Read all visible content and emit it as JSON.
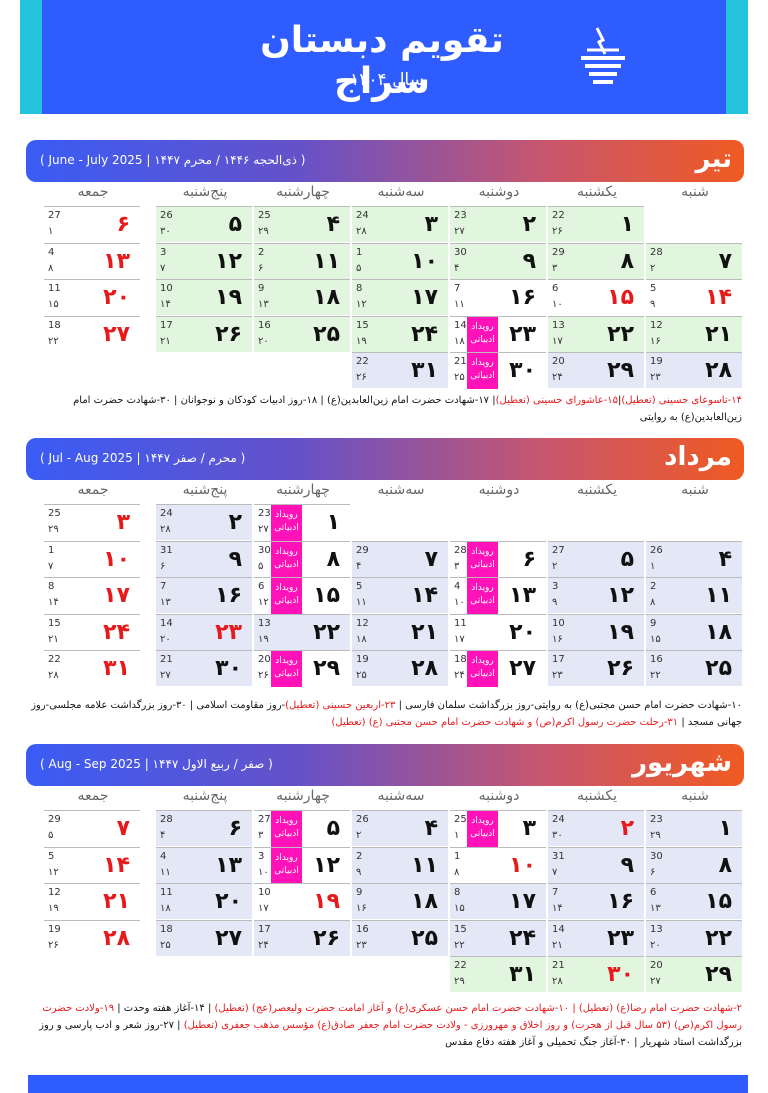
{
  "header": {
    "title": "تقویم دبستان سراج",
    "year": "سال ۱۴۰۴"
  },
  "weekdays": [
    "شنبه",
    "یکشنبه",
    "دوشنبه",
    "سه‌شنبه",
    "چهارشنبه",
    "پنج‌شنبه",
    "جمعه"
  ],
  "event_label": "رویداد ادبیاتی",
  "colors": {
    "header": "#2f5cff",
    "accent": "#23c3dc",
    "holiday": "#e8191b",
    "event": "#ff12b8",
    "week_green": "#e2f6df",
    "week_blue": "#e4e8f6"
  },
  "months": [
    {
      "name": "تیر",
      "hijri_range": "( ذی‌الحجه ۱۴۴۶ / محرم ۱۴۴۷ | June - July 2025 )",
      "rows": [
        [
          {
            "d": "",
            "h": "",
            "g": ""
          },
          {
            "d": "۱",
            "h": "۲۶",
            "g": "22",
            "bg": "gr"
          },
          {
            "d": "۲",
            "h": "۲۷",
            "g": "23",
            "bg": "gr"
          },
          {
            "d": "۳",
            "h": "۲۸",
            "g": "24",
            "bg": "gr"
          },
          {
            "d": "۴",
            "h": "۲۹",
            "g": "25",
            "bg": "gr"
          },
          {
            "d": "۵",
            "h": "۳۰",
            "g": "26",
            "bg": "gr"
          },
          {
            "d": "۶",
            "h": "۱",
            "g": "27",
            "red": true
          }
        ],
        [
          {
            "d": "۷",
            "h": "۲",
            "g": "28",
            "bg": "gr"
          },
          {
            "d": "۸",
            "h": "۳",
            "g": "29",
            "bg": "gr"
          },
          {
            "d": "۹",
            "h": "۴",
            "g": "30",
            "bg": "gr"
          },
          {
            "d": "۱۰",
            "h": "۵",
            "g": "1",
            "bg": "gr"
          },
          {
            "d": "۱۱",
            "h": "۶",
            "g": "2",
            "bg": "gr"
          },
          {
            "d": "۱۲",
            "h": "۷",
            "g": "3",
            "bg": "gr"
          },
          {
            "d": "۱۳",
            "h": "۸",
            "g": "4",
            "red": true
          }
        ],
        [
          {
            "d": "۱۴",
            "h": "۹",
            "g": "5",
            "red": true
          },
          {
            "d": "۱۵",
            "h": "۱۰",
            "g": "6",
            "red": true
          },
          {
            "d": "۱۶",
            "h": "۱۱",
            "g": "7"
          },
          {
            "d": "۱۷",
            "h": "۱۲",
            "g": "8",
            "bg": "gr"
          },
          {
            "d": "۱۸",
            "h": "۱۳",
            "g": "9",
            "bg": "gr"
          },
          {
            "d": "۱۹",
            "h": "۱۴",
            "g": "10",
            "bg": "gr"
          },
          {
            "d": "۲۰",
            "h": "۱۵",
            "g": "11",
            "red": true
          }
        ],
        [
          {
            "d": "۲۱",
            "h": "۱۶",
            "g": "12",
            "bg": "gr"
          },
          {
            "d": "۲۲",
            "h": "۱۷",
            "g": "13",
            "bg": "gr"
          },
          {
            "d": "۲۳",
            "h": "۱۸",
            "g": "14",
            "ev": true
          },
          {
            "d": "۲۴",
            "h": "۱۹",
            "g": "15",
            "bg": "gr"
          },
          {
            "d": "۲۵",
            "h": "۲۰",
            "g": "16",
            "bg": "gr"
          },
          {
            "d": "۲۶",
            "h": "۲۱",
            "g": "17",
            "bg": "gr"
          },
          {
            "d": "۲۷",
            "h": "۲۲",
            "g": "18",
            "red": true
          }
        ],
        [
          {
            "d": "۲۸",
            "h": "۲۳",
            "g": "19",
            "bg": "bl"
          },
          {
            "d": "۲۹",
            "h": "۲۴",
            "g": "20",
            "bg": "bl"
          },
          {
            "d": "۳۰",
            "h": "۲۵",
            "g": "21",
            "ev": true
          },
          {
            "d": "۳۱",
            "h": "۲۶",
            "g": "22",
            "bg": "bl"
          }
        ]
      ],
      "notes": [
        {
          "t": "۱۴-تاسوعای حسینی (تعطیل)",
          "r": true
        },
        {
          "t": "|"
        },
        {
          "t": "۱۵-عاشورای حسینی (تعطیل)",
          "r": true
        },
        {
          "t": "| ۱۷-شهادت حضرت امام زین‌العابدین(ع) | ۱۸-روز ادبیات کودکان و نوجوانان | ۳۰-شهادت حضرت امام زین‌العابدین(ع) به روایتی"
        }
      ]
    },
    {
      "name": "مرداد",
      "hijri_range": "( محرم / صفر ۱۴۴۷ | Jul - Aug 2025 )",
      "rows": [
        [
          {
            "d": "",
            "h": "",
            "g": ""
          },
          {
            "d": "",
            "h": "",
            "g": ""
          },
          {
            "d": "",
            "h": "",
            "g": ""
          },
          {
            "d": "",
            "h": "",
            "g": ""
          },
          {
            "d": "۱",
            "h": "۲۷",
            "g": "23",
            "ev": true
          },
          {
            "d": "۲",
            "h": "۲۸",
            "g": "24",
            "bg": "bl"
          },
          {
            "d": "۳",
            "h": "۲۹",
            "g": "25",
            "red": true
          }
        ],
        [
          {
            "d": "۴",
            "h": "۱",
            "g": "26",
            "bg": "bl"
          },
          {
            "d": "۵",
            "h": "۲",
            "g": "27",
            "bg": "bl"
          },
          {
            "d": "۶",
            "h": "۳",
            "g": "28",
            "ev": true
          },
          {
            "d": "۷",
            "h": "۴",
            "g": "29",
            "bg": "bl"
          },
          {
            "d": "۸",
            "h": "۵",
            "g": "30",
            "ev": true
          },
          {
            "d": "۹",
            "h": "۶",
            "g": "31",
            "bg": "bl"
          },
          {
            "d": "۱۰",
            "h": "۷",
            "g": "1",
            "red": true
          }
        ],
        [
          {
            "d": "۱۱",
            "h": "۸",
            "g": "2",
            "bg": "bl"
          },
          {
            "d": "۱۲",
            "h": "۹",
            "g": "3",
            "bg": "bl"
          },
          {
            "d": "۱۳",
            "h": "۱۰",
            "g": "4",
            "ev": true
          },
          {
            "d": "۱۴",
            "h": "۱۱",
            "g": "5",
            "bg": "bl"
          },
          {
            "d": "۱۵",
            "h": "۱۲",
            "g": "6",
            "ev": true
          },
          {
            "d": "۱۶",
            "h": "۱۳",
            "g": "7",
            "bg": "bl"
          },
          {
            "d": "۱۷",
            "h": "۱۴",
            "g": "8",
            "red": true
          }
        ],
        [
          {
            "d": "۱۸",
            "h": "۱۵",
            "g": "9",
            "bg": "bl"
          },
          {
            "d": "۱۹",
            "h": "۱۶",
            "g": "10",
            "bg": "bl"
          },
          {
            "d": "۲۰",
            "h": "۱۷",
            "g": "11"
          },
          {
            "d": "۲۱",
            "h": "۱۸",
            "g": "12",
            "bg": "bl"
          },
          {
            "d": "۲۲",
            "h": "۱۹",
            "g": "13",
            "bg": "bl"
          },
          {
            "d": "۲۳",
            "h": "۲۰",
            "g": "14",
            "red": true,
            "bg": "bl"
          },
          {
            "d": "۲۴",
            "h": "۲۱",
            "g": "15",
            "red": true
          }
        ],
        [
          {
            "d": "۲۵",
            "h": "۲۲",
            "g": "16",
            "bg": "bl"
          },
          {
            "d": "۲۶",
            "h": "۲۳",
            "g": "17",
            "bg": "bl"
          },
          {
            "d": "۲۷",
            "h": "۲۴",
            "g": "18",
            "ev": true
          },
          {
            "d": "۲۸",
            "h": "۲۵",
            "g": "19",
            "bg": "bl"
          },
          {
            "d": "۲۹",
            "h": "۲۶",
            "g": "20",
            "ev": true
          },
          {
            "d": "۳۰",
            "h": "۲۷",
            "g": "21",
            "bg": "bl"
          },
          {
            "d": "۳۱",
            "h": "۲۸",
            "g": "22",
            "red": true
          }
        ]
      ],
      "notes": [
        {
          "t": "۱۰-شهادت حضرت امام حسن مجتبی(ع) به روایتی-روز بزرگداشت سلمان فارسی | "
        },
        {
          "t": "۲۳-اربعین حسینی (تعطیل)",
          "r": true
        },
        {
          "t": "-روز مقاومت اسلامی | ۳۰-روز بزرگداشت علامه مجلسی-روز جهانی مسجد | "
        },
        {
          "t": "۳۱-رحلت حضرت رسول اکرم(ص) و شهادت حضرت امام حسن مجتبی (ع) (تعطیل)",
          "r": true
        }
      ]
    },
    {
      "name": "شهریور",
      "hijri_range": "( صفر / ربیع الاول ۱۴۴۷ | Aug - Sep 2025 )",
      "rows": [
        [
          {
            "d": "۱",
            "h": "۲۹",
            "g": "23",
            "bg": "bl"
          },
          {
            "d": "۲",
            "h": "۳۰",
            "g": "24",
            "red": true,
            "bg": "bl"
          },
          {
            "d": "۳",
            "h": "۱",
            "g": "25",
            "ev": true
          },
          {
            "d": "۴",
            "h": "۲",
            "g": "26",
            "bg": "bl"
          },
          {
            "d": "۵",
            "h": "۳",
            "g": "27",
            "ev": true
          },
          {
            "d": "۶",
            "h": "۴",
            "g": "28",
            "bg": "bl"
          },
          {
            "d": "۷",
            "h": "۵",
            "g": "29",
            "red": true
          }
        ],
        [
          {
            "d": "۸",
            "h": "۶",
            "g": "30",
            "bg": "bl"
          },
          {
            "d": "۹",
            "h": "۷",
            "g": "31",
            "bg": "bl"
          },
          {
            "d": "۱۰",
            "h": "۸",
            "g": "1",
            "red": true
          },
          {
            "d": "۱۱",
            "h": "۹",
            "g": "2",
            "bg": "bl"
          },
          {
            "d": "۱۲",
            "h": "۱۰",
            "g": "3",
            "ev": true
          },
          {
            "d": "۱۳",
            "h": "۱۱",
            "g": "4",
            "bg": "bl"
          },
          {
            "d": "۱۴",
            "h": "۱۲",
            "g": "5",
            "red": true
          }
        ],
        [
          {
            "d": "۱۵",
            "h": "۱۳",
            "g": "6",
            "bg": "bl"
          },
          {
            "d": "۱۶",
            "h": "۱۴",
            "g": "7",
            "bg": "bl"
          },
          {
            "d": "۱۷",
            "h": "۱۵",
            "g": "8",
            "bg": "bl"
          },
          {
            "d": "۱۸",
            "h": "۱۶",
            "g": "9",
            "bg": "bl"
          },
          {
            "d": "۱۹",
            "h": "۱۷",
            "g": "10",
            "red": true
          },
          {
            "d": "۲۰",
            "h": "۱۸",
            "g": "11",
            "bg": "bl"
          },
          {
            "d": "۲۱",
            "h": "۱۹",
            "g": "12",
            "red": true
          }
        ],
        [
          {
            "d": "۲۲",
            "h": "۲۰",
            "g": "13",
            "bg": "bl"
          },
          {
            "d": "۲۳",
            "h": "۲۱",
            "g": "14",
            "bg": "bl"
          },
          {
            "d": "۲۴",
            "h": "۲۲",
            "g": "15",
            "bg": "bl"
          },
          {
            "d": "۲۵",
            "h": "۲۳",
            "g": "16",
            "bg": "bl"
          },
          {
            "d": "۲۶",
            "h": "۲۴",
            "g": "17",
            "bg": "bl"
          },
          {
            "d": "۲۷",
            "h": "۲۵",
            "g": "18",
            "bg": "bl"
          },
          {
            "d": "۲۸",
            "h": "۲۶",
            "g": "19",
            "red": true
          }
        ],
        [
          {
            "d": "۲۹",
            "h": "۲۷",
            "g": "20",
            "bg": "gr"
          },
          {
            "d": "۳۰",
            "h": "۲۸",
            "g": "21",
            "red": true,
            "bg": "gr"
          },
          {
            "d": "۳۱",
            "h": "۲۹",
            "g": "22",
            "bg": "gr"
          }
        ]
      ],
      "notes": [
        {
          "t": "۲-شهادت حضرت امام رضا(ع) (تعطیل) | ۱۰-شهادت حضرت امام حسن عسکری(ع) و آغاز امامت حضرت ولیعصر(عج) (تعطیل)",
          "r": true
        },
        {
          "t": " | ۱۴-آغاز هفته وحدت | "
        },
        {
          "t": "۱۹-ولادت حضرت رسول اکرم(ص) (۵۳ سال قبل از هجرت) و روز اخلاق و مهرورزی - ولادت حضرت امام جعفر صادق(ع) مؤسس مذهب جعفری (تعطیل)",
          "r": true
        },
        {
          "t": " | ۲۷-روز شعر و ادب پارسی و روز بزرگداشت استاد شهریار | ۳۰-آغاز جنگ تحمیلی و آغاز هفته دفاع مقدس"
        }
      ]
    }
  ]
}
